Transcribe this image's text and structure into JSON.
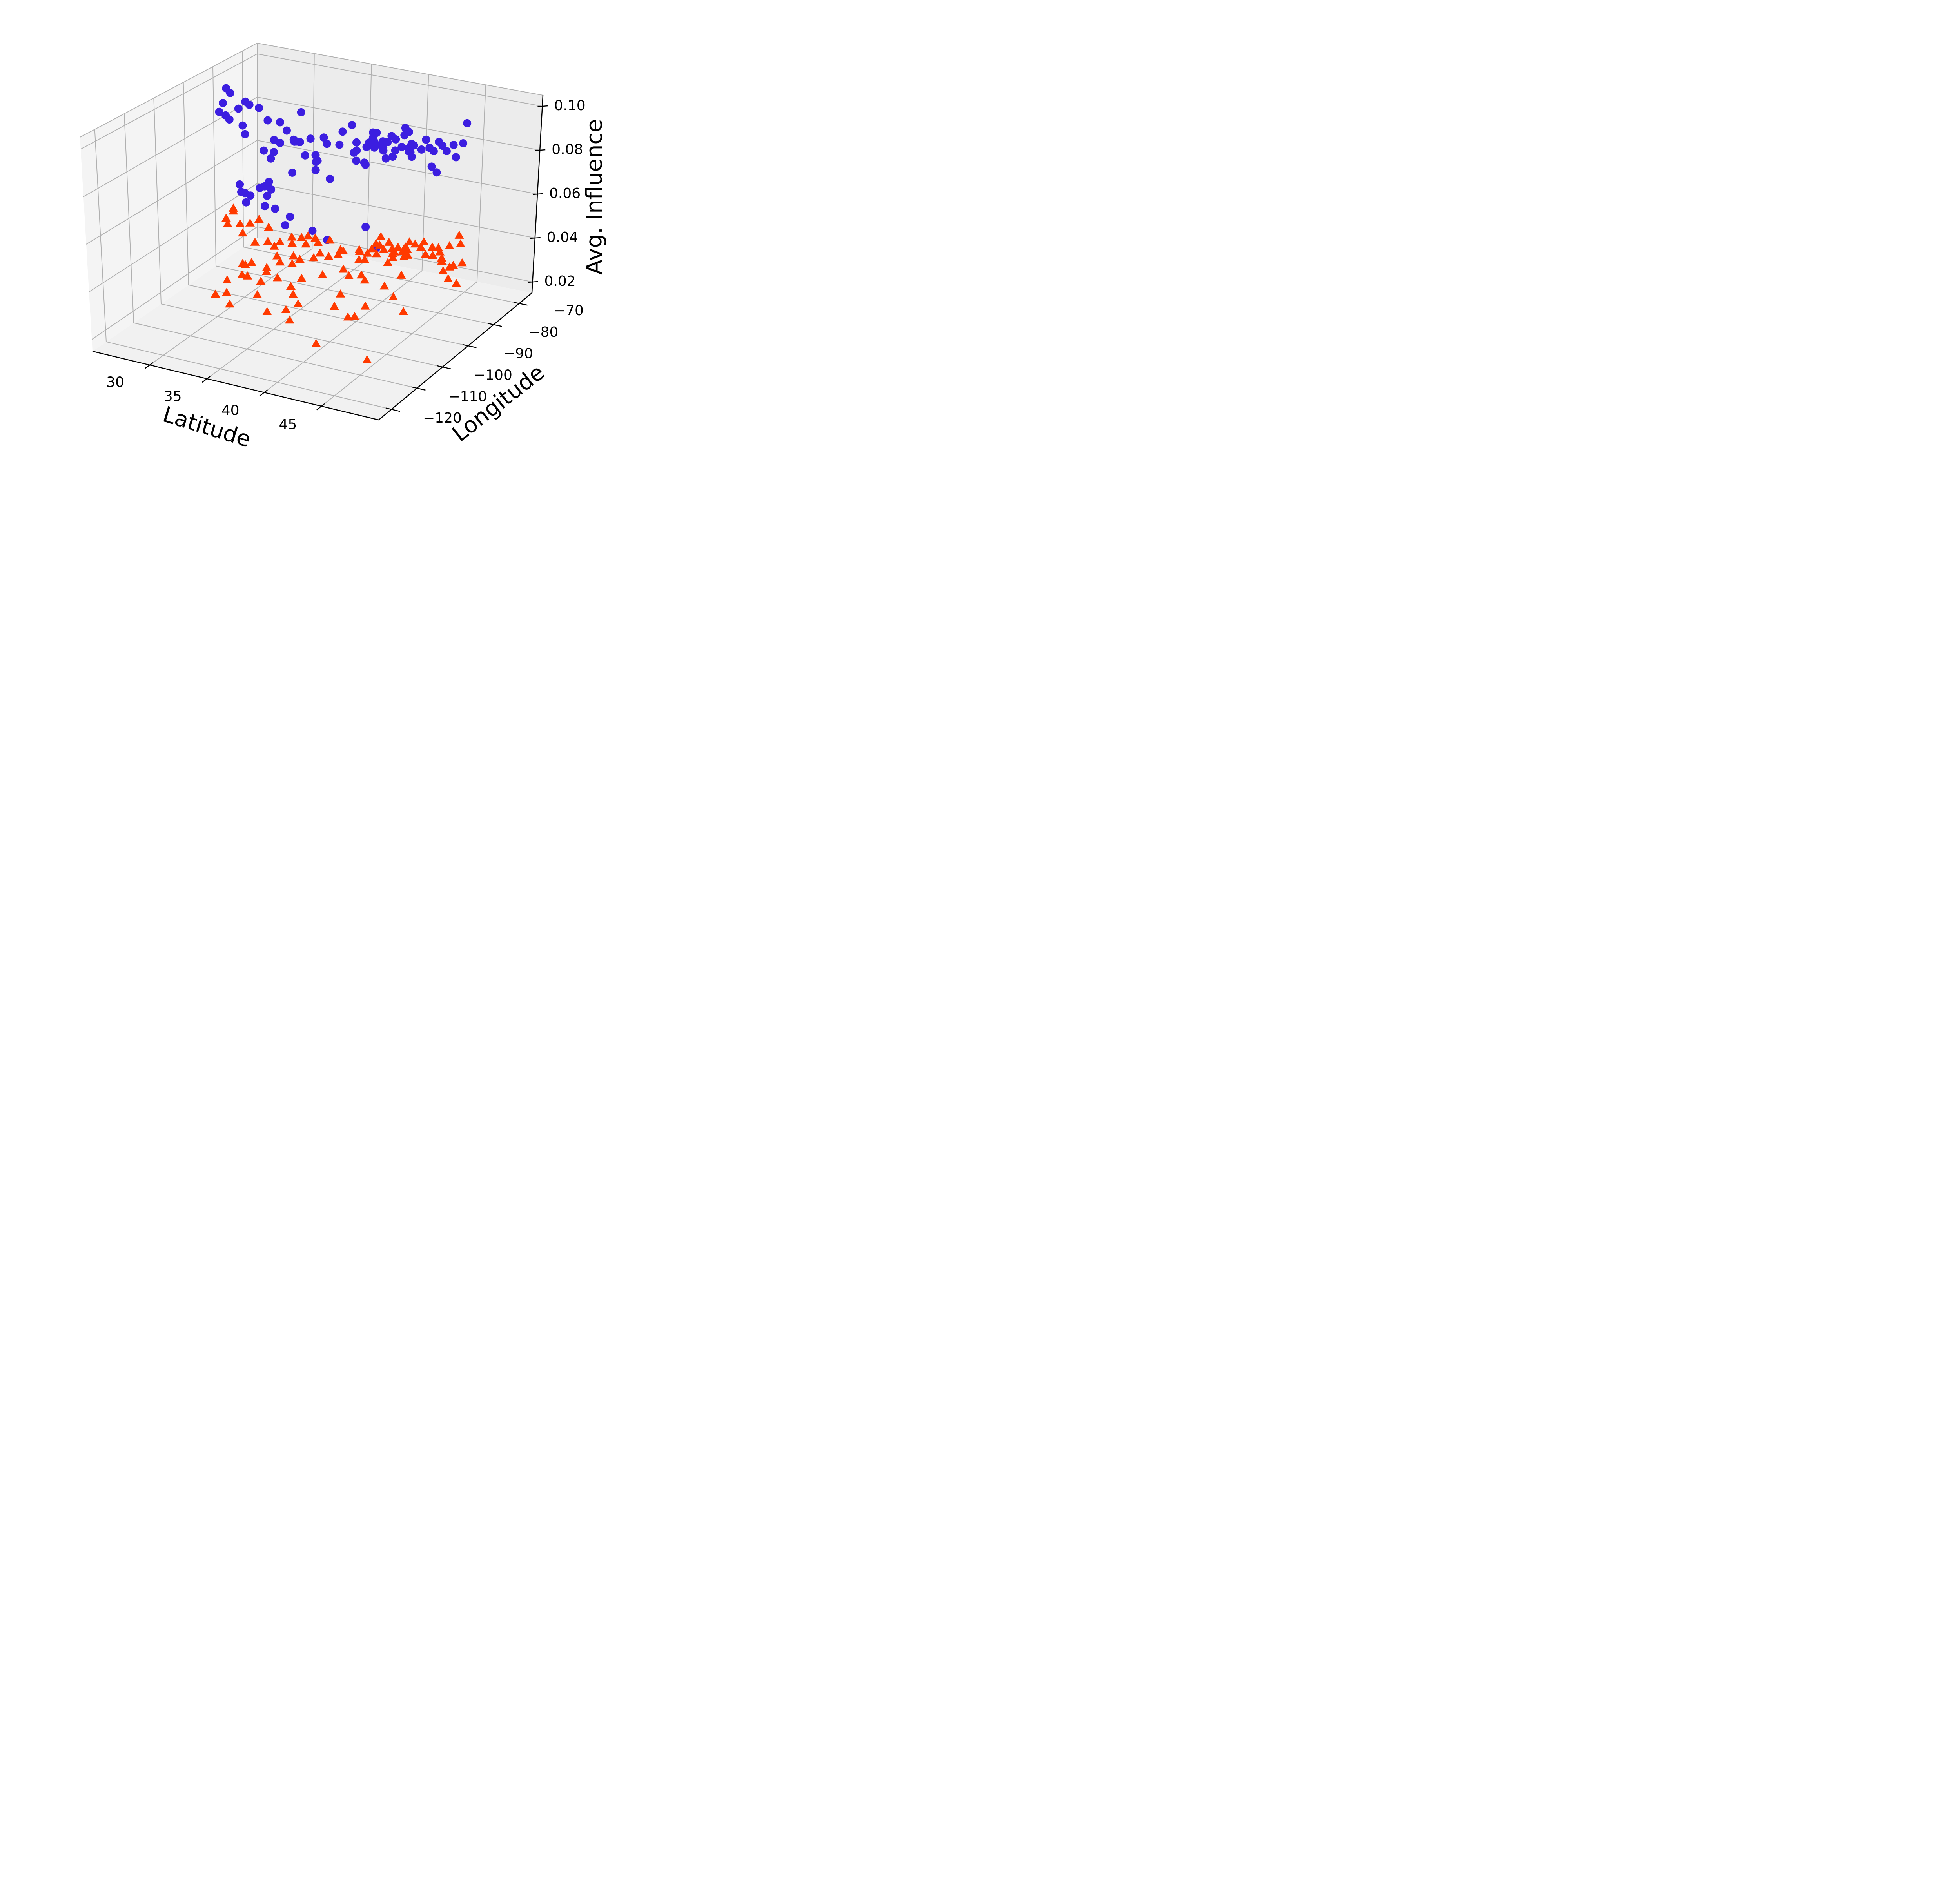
{
  "chart_data": {
    "type": "scatter",
    "projection": "3d",
    "xlabel": "Latitude",
    "ylabel": "Longitude",
    "zlabel": "Avg. Influence",
    "xlim": [
      25,
      50
    ],
    "ylim": [
      -125,
      -65
    ],
    "zlim": [
      0.015,
      0.105
    ],
    "x_ticks": [
      30,
      35,
      40,
      45
    ],
    "y_ticks": [
      -120,
      -110,
      -100,
      -90,
      -80,
      -70
    ],
    "z_ticks": [
      0.02,
      0.04,
      0.06,
      0.08,
      0.1
    ],
    "x_tick_labels": [
      "30",
      "35",
      "40",
      "45"
    ],
    "y_tick_labels": [
      "−120",
      "−110",
      "−100",
      "−90",
      "−80",
      "−70"
    ],
    "z_tick_labels": [
      "0.02",
      "0.04",
      "0.06",
      "0.08",
      "0.10"
    ],
    "grid": true,
    "colors": {
      "blue": "#3c1ee0",
      "orange": "#ff3a00"
    },
    "series": [
      {
        "marker": "circle",
        "color": "#3c1ee0",
        "points": [
          [
            26.2,
            -81.5,
            0.091
          ],
          [
            26.5,
            -81.5,
            0.098
          ],
          [
            26.8,
            -81.3,
            0.096
          ],
          [
            26.2,
            -82.8,
            0.088
          ],
          [
            26.5,
            -81.8,
            0.086
          ],
          [
            26.7,
            -81.3,
            0.084
          ],
          [
            27.8,
            -82.5,
            0.091
          ],
          [
            28.2,
            -81.7,
            0.094
          ],
          [
            28.8,
            -82.7,
            0.094
          ],
          [
            29.5,
            -82.2,
            0.093
          ],
          [
            28.2,
            -82.7,
            0.084
          ],
          [
            28.8,
            -84.3,
            0.082
          ],
          [
            30.2,
            -82.0,
            0.088
          ],
          [
            30.8,
            -82.2,
            0.08
          ],
          [
            30.9,
            -82.7,
            0.075
          ],
          [
            31.2,
            -81.7,
            0.088
          ],
          [
            30.9,
            -83.8,
            0.073
          ],
          [
            31.8,
            -81.8,
            0.085
          ],
          [
            32.5,
            -82.2,
            0.082
          ],
          [
            32.9,
            -82.7,
            0.082
          ],
          [
            32.9,
            -81.2,
            0.094
          ],
          [
            33.5,
            -80.3,
            0.082
          ],
          [
            33.5,
            -82.2,
            0.076
          ],
          [
            34.2,
            -80.6,
            0.073
          ],
          [
            35.1,
            -81.0,
            0.082
          ],
          [
            35.8,
            -78.3,
            0.086
          ],
          [
            36.9,
            -78.7,
            0.078
          ],
          [
            35.3,
            -80.6,
            0.066
          ],
          [
            37.0,
            -78.2,
            0.074
          ],
          [
            37.3,
            -76.5,
            0.072
          ],
          [
            36.2,
            -76.6,
            0.088
          ],
          [
            37.4,
            -76.2,
            0.079
          ],
          [
            36.5,
            -76.1,
            0.08
          ],
          [
            37.6,
            -77.3,
            0.072
          ],
          [
            37.7,
            -75.2,
            0.085
          ],
          [
            37.8,
            -75.6,
            0.083
          ],
          [
            38.9,
            -76.5,
            0.082
          ],
          [
            38.2,
            -76.7,
            0.08
          ],
          [
            38.6,
            -75.3,
            0.082
          ],
          [
            38.4,
            -76.8,
            0.087
          ],
          [
            39.7,
            -76.2,
            0.077
          ],
          [
            38.9,
            -76.3,
            0.079
          ],
          [
            39.3,
            -75.1,
            0.085
          ],
          [
            39.7,
            -75.2,
            0.084
          ],
          [
            40.0,
            -74.2,
            0.08
          ],
          [
            40.8,
            -74.0,
            0.082
          ],
          [
            40.6,
            -74.1,
            0.08
          ],
          [
            40.5,
            -73.8,
            0.087
          ],
          [
            40.5,
            -73.7,
            0.078
          ],
          [
            40.9,
            -73.5,
            0.081
          ],
          [
            41.4,
            -72.8,
            0.079
          ],
          [
            41.8,
            -72.9,
            0.084
          ],
          [
            41.8,
            -71.5,
            0.079
          ],
          [
            42.5,
            -71.0,
            0.082
          ],
          [
            42.2,
            -71.6,
            0.078
          ],
          [
            42.9,
            -71.4,
            0.081
          ],
          [
            42.5,
            -73.5,
            0.073
          ],
          [
            42.8,
            -72.8,
            0.07
          ],
          [
            44.5,
            -73.1,
            0.079
          ],
          [
            44.9,
            -72.3,
            0.085
          ],
          [
            40.3,
            -74.6,
            0.086
          ],
          [
            44.7,
            -70.2,
            0.092
          ],
          [
            43.6,
            -70.2,
            0.081
          ],
          [
            43.1,
            -70.6,
            0.078
          ],
          [
            39.7,
            -75.3,
            0.079
          ],
          [
            40.7,
            -74.0,
            0.08
          ],
          [
            40.7,
            -73.9,
            0.078
          ],
          [
            40.8,
            -73.8,
            0.076
          ],
          [
            39.2,
            -76.1,
            0.083
          ],
          [
            39.2,
            -76.6,
            0.076
          ],
          [
            40.3,
            -74.3,
            0.089
          ],
          [
            39.0,
            -76.8,
            0.081
          ],
          [
            38.3,
            -77.1,
            0.083
          ],
          [
            38.0,
            -77.8,
            0.083
          ],
          [
            38.3,
            -76.4,
            0.081
          ],
          [
            37.3,
            -79.4,
            0.08
          ],
          [
            35.8,
            -79.4,
            0.081
          ],
          [
            34.7,
            -80.5,
            0.084
          ],
          [
            34.6,
            -83.0,
            0.078
          ],
          [
            33.2,
            -84.8,
            0.084
          ],
          [
            33.6,
            -84.5,
            0.084
          ],
          [
            32.4,
            -86.6,
            0.084
          ],
          [
            31.0,
            -86.7,
            0.079
          ],
          [
            33.5,
            -86.8,
            0.072
          ],
          [
            35.0,
            -84.6,
            0.073
          ],
          [
            35.5,
            -86.6,
            0.079
          ],
          [
            31.5,
            -88.5,
            0.065
          ],
          [
            32.0,
            -89.0,
            0.068
          ],
          [
            31.8,
            -87.4,
            0.063
          ],
          [
            30.6,
            -89.9,
            0.061
          ],
          [
            29.7,
            -90.0,
            0.065
          ],
          [
            30.1,
            -91.1,
            0.063
          ],
          [
            30.7,
            -92.2,
            0.064
          ],
          [
            31.0,
            -93.1,
            0.061
          ],
          [
            32.8,
            -93.8,
            0.062
          ],
          [
            32.6,
            -92.1,
            0.065
          ],
          [
            31.8,
            -91.4,
            0.067
          ],
          [
            33.5,
            -93.0,
            0.061
          ],
          [
            34.6,
            -92.2,
            0.058
          ],
          [
            35.3,
            -96.9,
            0.059
          ],
          [
            38.2,
            -99.2,
            0.062
          ],
          [
            40.2,
            -102.3,
            0.063
          ],
          [
            42.9,
            -99.8,
            0.07
          ],
          [
            44.3,
            -101.8,
            0.064
          ]
        ]
      },
      {
        "marker": "triangle",
        "color": "#ff3a00",
        "points": [
          [
            26.3,
            -81.3,
            0.039
          ],
          [
            26.5,
            -81.6,
            0.037
          ],
          [
            26.9,
            -81.1,
            0.044
          ],
          [
            27.2,
            -82.3,
            0.044
          ],
          [
            27.8,
            -82.4,
            0.039
          ],
          [
            28.4,
            -81.2,
            0.039
          ],
          [
            28.0,
            -82.3,
            0.035
          ],
          [
            29.1,
            -82.3,
            0.032
          ],
          [
            29.3,
            -81.6,
            0.042
          ],
          [
            30.1,
            -81.7,
            0.033
          ],
          [
            30.3,
            -82.2,
            0.04
          ],
          [
            30.8,
            -82.2,
            0.032
          ],
          [
            31.2,
            -81.8,
            0.034
          ],
          [
            31.5,
            -84.1,
            0.03
          ],
          [
            32.4,
            -81.8,
            0.029
          ],
          [
            32.4,
            -82.4,
            0.038
          ],
          [
            32.6,
            -83.1,
            0.036
          ],
          [
            32.9,
            -80.9,
            0.037
          ],
          [
            33.6,
            -81.4,
            0.039
          ],
          [
            33.6,
            -82.2,
            0.036
          ],
          [
            34.1,
            -80.8,
            0.038
          ],
          [
            34.3,
            -80.6,
            0.036
          ],
          [
            34.6,
            -81.1,
            0.032
          ],
          [
            35.3,
            -80.4,
            0.038
          ],
          [
            35.6,
            -78.5,
            0.03
          ],
          [
            35.9,
            -78.9,
            0.033
          ],
          [
            36.3,
            -79.4,
            0.025
          ],
          [
            37.7,
            -79.5,
            0.031
          ],
          [
            37.0,
            -76.3,
            0.031
          ],
          [
            37.7,
            -77.3,
            0.029
          ],
          [
            38.6,
            -75.6,
            0.035
          ],
          [
            38.2,
            -76.8,
            0.034
          ],
          [
            38.4,
            -76.1,
            0.036
          ],
          [
            38.5,
            -74.8,
            0.038
          ],
          [
            39.4,
            -75.5,
            0.037
          ],
          [
            39.6,
            -75.1,
            0.034
          ],
          [
            39.6,
            -76.6,
            0.029
          ],
          [
            39.9,
            -76.0,
            0.031
          ],
          [
            40.5,
            -74.5,
            0.034
          ],
          [
            40.8,
            -74.4,
            0.032
          ],
          [
            40.6,
            -74.3,
            0.035
          ],
          [
            40.7,
            -73.9,
            0.031
          ],
          [
            40.8,
            -73.7,
            0.037
          ],
          [
            41.2,
            -73.2,
            0.036
          ],
          [
            41.5,
            -72.2,
            0.034
          ],
          [
            41.6,
            -71.6,
            0.036
          ],
          [
            41.9,
            -72.1,
            0.031
          ],
          [
            42.3,
            -71.3,
            0.034
          ],
          [
            42.5,
            -71.9,
            0.031
          ],
          [
            42.8,
            -71.1,
            0.034
          ],
          [
            42.9,
            -70.9,
            0.032
          ],
          [
            43.2,
            -71.4,
            0.03
          ],
          [
            43.5,
            -72.0,
            0.025
          ],
          [
            44.0,
            -72.1,
            0.022
          ],
          [
            44.3,
            -71.6,
            0.028
          ],
          [
            44.9,
            -70.8,
            0.029
          ],
          [
            45.0,
            -73.2,
            0.022
          ],
          [
            43.6,
            -70.3,
            0.035
          ],
          [
            44.5,
            -70.6,
            0.041
          ],
          [
            44.6,
            -70.4,
            0.037
          ],
          [
            43.8,
            -70.8,
            0.026
          ],
          [
            43.1,
            -70.9,
            0.028
          ],
          [
            40.4,
            -74.6,
            0.033
          ],
          [
            40.7,
            -74.1,
            0.034
          ],
          [
            40.1,
            -75.0,
            0.035
          ],
          [
            39.9,
            -75.4,
            0.033
          ],
          [
            40.4,
            -73.9,
            0.03
          ],
          [
            39.5,
            -74.5,
            0.031
          ],
          [
            38.9,
            -75.3,
            0.033
          ],
          [
            38.6,
            -76.7,
            0.032
          ],
          [
            37.9,
            -77.2,
            0.032
          ],
          [
            37.4,
            -78.2,
            0.034
          ],
          [
            36.4,
            -80.0,
            0.034
          ],
          [
            35.3,
            -80.8,
            0.031
          ],
          [
            34.4,
            -82.6,
            0.031
          ],
          [
            33.6,
            -84.4,
            0.031
          ],
          [
            33.5,
            -86.8,
            0.031
          ],
          [
            32.3,
            -86.3,
            0.03
          ],
          [
            31.5,
            -87.9,
            0.028
          ],
          [
            30.4,
            -88.9,
            0.03
          ],
          [
            29.9,
            -90.1,
            0.03
          ],
          [
            30.4,
            -91.2,
            0.031
          ],
          [
            30.3,
            -92.0,
            0.027
          ],
          [
            31.0,
            -92.9,
            0.028
          ],
          [
            32.4,
            -93.8,
            0.028
          ],
          [
            32.5,
            -92.1,
            0.031
          ],
          [
            33.2,
            -91.0,
            0.028
          ],
          [
            34.7,
            -92.3,
            0.027
          ],
          [
            35.4,
            -94.4,
            0.026
          ],
          [
            36.2,
            -95.9,
            0.024
          ],
          [
            35.5,
            -97.5,
            0.022
          ],
          [
            29.5,
            -98.5,
            0.023
          ],
          [
            29.8,
            -95.4,
            0.027
          ],
          [
            30.3,
            -97.7,
            0.024
          ],
          [
            32.8,
            -96.8,
            0.025
          ],
          [
            31.6,
            -102.0,
            0.024
          ],
          [
            34.4,
            -99.9,
            0.022
          ],
          [
            39.1,
            -94.6,
            0.025
          ],
          [
            38.6,
            -90.2,
            0.026
          ],
          [
            41.2,
            -95.9,
            0.024
          ],
          [
            40.8,
            -96.7,
            0.024
          ],
          [
            41.6,
            -93.6,
            0.027
          ],
          [
            44.9,
            -93.3,
            0.028
          ],
          [
            43.1,
            -89.4,
            0.029
          ],
          [
            41.9,
            -87.7,
            0.031
          ],
          [
            42.3,
            -83.0,
            0.032
          ],
          [
            39.8,
            -86.2,
            0.03
          ],
          [
            39.1,
            -84.5,
            0.03
          ],
          [
            38.3,
            -85.8,
            0.03
          ],
          [
            36.2,
            -86.8,
            0.029
          ],
          [
            35.1,
            -90.0,
            0.029
          ],
          [
            36.7,
            -101.2,
            0.022
          ],
          [
            40.0,
            -105.3,
            0.019
          ],
          [
            46.0,
            -112.0,
            0.025
          ]
        ]
      }
    ]
  }
}
